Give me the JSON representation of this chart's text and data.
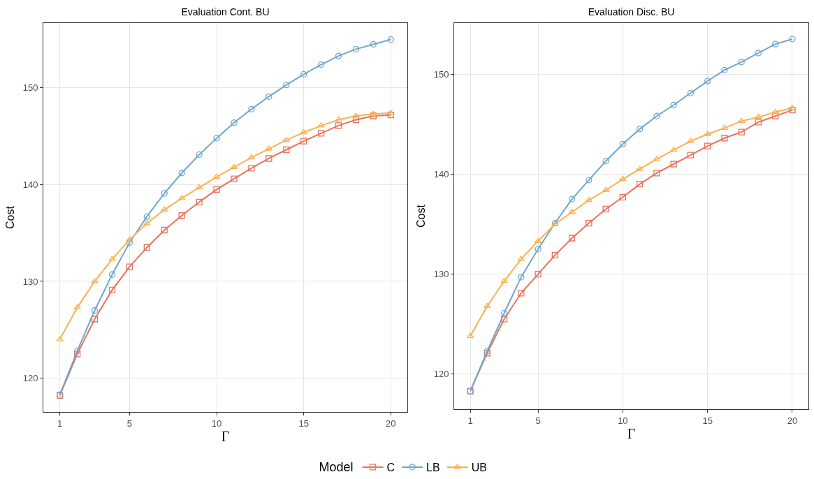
{
  "chart_data": [
    {
      "type": "line",
      "title": "Evaluation Cont. BU",
      "xlabel": "Γ",
      "ylabel": "Cost",
      "x": [
        1,
        2,
        3,
        4,
        5,
        6,
        7,
        8,
        9,
        10,
        11,
        12,
        13,
        14,
        15,
        16,
        17,
        18,
        19,
        20
      ],
      "xlim": [
        0.05,
        20.95
      ],
      "xticks": [
        1,
        5,
        10,
        15,
        20
      ],
      "ylim": [
        116.5,
        156.7
      ],
      "yticks": [
        120,
        130,
        140,
        150
      ],
      "grid": true,
      "series": [
        {
          "color": "#e8735a",
          "marker": "square",
          "values": [
            118.2,
            122.5,
            126.1,
            129.1,
            131.5,
            133.5,
            135.3,
            136.8,
            138.2,
            139.5,
            140.6,
            141.7,
            142.7,
            143.6,
            144.5,
            145.3,
            146.1,
            146.7,
            147.1,
            147.2
          ]
        },
        {
          "color": "#6ea6cd",
          "marker": "circle",
          "values": [
            118.3,
            122.8,
            127.0,
            130.7,
            134.0,
            136.7,
            139.1,
            141.2,
            143.1,
            144.8,
            146.4,
            147.8,
            149.1,
            150.3,
            151.4,
            152.4,
            153.3,
            154.0,
            154.5,
            155.0
          ]
        },
        {
          "color": "#fdb04e",
          "marker": "triangle",
          "values": [
            124.0,
            127.3,
            130.0,
            132.3,
            134.3,
            136.0,
            137.4,
            138.6,
            139.7,
            140.8,
            141.8,
            142.8,
            143.7,
            144.6,
            145.4,
            146.1,
            146.7,
            147.1,
            147.3,
            147.4
          ]
        }
      ]
    },
    {
      "type": "line",
      "title": "Evaluation Disc. BU",
      "xlabel": "Γ",
      "ylabel": "Cost",
      "legend_title": "Model",
      "x": [
        1,
        2,
        3,
        4,
        5,
        6,
        7,
        8,
        9,
        10,
        11,
        12,
        13,
        14,
        15,
        16,
        17,
        18,
        19,
        20
      ],
      "xlim": [
        0.05,
        20.95
      ],
      "xticks": [
        1,
        5,
        10,
        15,
        20
      ],
      "ylim": [
        116.5,
        155.1
      ],
      "yticks": [
        120,
        130,
        140,
        150
      ],
      "grid": true,
      "legend": "bottom",
      "series": [
        {
          "name": "C",
          "color": "#e8735a",
          "marker": "square",
          "values": [
            118.3,
            122.1,
            125.5,
            128.1,
            130.0,
            131.9,
            133.6,
            135.1,
            136.5,
            137.7,
            139.0,
            140.1,
            141.0,
            141.9,
            142.8,
            143.6,
            144.2,
            145.2,
            145.8,
            146.4
          ]
        },
        {
          "name": "LB",
          "color": "#6ea6cd",
          "marker": "circle",
          "values": [
            118.3,
            122.3,
            126.1,
            129.7,
            132.5,
            135.1,
            137.5,
            139.4,
            141.3,
            143.0,
            144.5,
            145.8,
            146.9,
            148.1,
            149.3,
            150.4,
            151.2,
            152.1,
            153.0,
            153.5
          ]
        },
        {
          "name": "UB",
          "color": "#fdb04e",
          "marker": "triangle",
          "values": [
            123.8,
            126.8,
            129.3,
            131.5,
            133.3,
            135.0,
            136.2,
            137.4,
            138.4,
            139.5,
            140.5,
            141.5,
            142.4,
            143.3,
            144.0,
            144.6,
            145.3,
            145.7,
            146.2,
            146.6
          ]
        }
      ]
    }
  ]
}
